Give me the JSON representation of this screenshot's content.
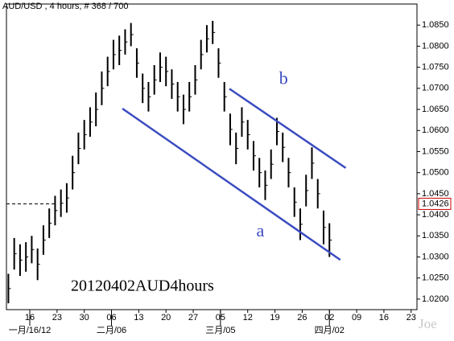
{
  "chart_data": {
    "type": "hilo",
    "title": "AUD/USD , 4 hours, # 368 / 700",
    "watermark": "20120402AUD4hours",
    "signature": "Joe",
    "color": "#000000",
    "x": [
      10.5,
      12,
      13.5,
      15,
      16.5,
      18,
      19.5,
      21,
      22.5,
      24,
      25.5,
      27,
      28.5,
      30,
      31.5,
      33,
      34.5,
      36,
      37.5,
      39,
      40.5,
      42,
      43.5,
      45,
      46.5,
      48,
      49.5,
      51,
      52.5,
      54,
      55.5,
      57,
      58.5,
      60,
      61.5,
      63,
      64.5,
      66,
      67.5,
      69,
      70.5,
      72,
      73.5,
      75,
      76.5,
      78,
      79.5,
      81,
      82.5,
      84,
      85.5,
      87,
      88.5,
      90,
      91.5,
      93
    ],
    "high": [
      1.026,
      1.0345,
      1.033,
      1.0335,
      1.035,
      1.032,
      1.0375,
      1.0415,
      1.0445,
      1.046,
      1.0475,
      1.054,
      1.0595,
      1.0625,
      1.0655,
      1.069,
      1.074,
      1.0775,
      1.0815,
      1.0825,
      1.084,
      1.0855,
      1.0795,
      1.0735,
      1.0715,
      1.0755,
      1.0785,
      1.0775,
      1.0745,
      1.0715,
      1.0685,
      1.0715,
      1.0755,
      1.0815,
      1.085,
      1.086,
      1.0795,
      1.0715,
      1.064,
      1.0595,
      1.0655,
      1.0625,
      1.0575,
      1.0535,
      1.0505,
      1.0555,
      1.063,
      1.0595,
      1.0535,
      1.0465,
      1.0415,
      1.0495,
      1.056,
      1.0485,
      1.041,
      1.038
    ],
    "low": [
      1.019,
      1.027,
      1.0255,
      1.0265,
      1.0285,
      1.0245,
      1.0305,
      1.0345,
      1.0375,
      1.0395,
      1.0405,
      1.046,
      1.052,
      1.0555,
      1.0585,
      1.061,
      1.066,
      1.0705,
      1.0745,
      1.0755,
      1.078,
      1.08,
      1.0725,
      1.0665,
      1.0645,
      1.0685,
      1.0715,
      1.0705,
      1.0675,
      1.0645,
      1.0615,
      1.0645,
      1.0685,
      1.0745,
      1.0785,
      1.0805,
      1.0725,
      1.0645,
      1.0565,
      1.052,
      1.0585,
      1.0555,
      1.0505,
      1.0465,
      1.0435,
      1.0485,
      1.0565,
      1.0525,
      1.0465,
      1.0395,
      1.034,
      1.042,
      1.0485,
      1.0415,
      1.033,
      1.03
    ],
    "xlim": [
      10,
      115.5
    ],
    "ylim": [
      1.0175,
      1.09
    ],
    "yticks": [
      {
        "value": 1.085,
        "label": "1.0850"
      },
      {
        "value": 1.08,
        "label": "1.0800"
      },
      {
        "value": 1.075,
        "label": "1.0750"
      },
      {
        "value": 1.07,
        "label": "1.0700"
      },
      {
        "value": 1.065,
        "label": "1.0650"
      },
      {
        "value": 1.06,
        "label": "1.0600"
      },
      {
        "value": 1.055,
        "label": "1.0550"
      },
      {
        "value": 1.05,
        "label": "1.0500"
      },
      {
        "value": 1.045,
        "label": "1.0450"
      },
      {
        "value": 1.04,
        "label": "1.0400"
      },
      {
        "value": 1.035,
        "label": "1.0350"
      },
      {
        "value": 1.03,
        "label": "1.0300"
      },
      {
        "value": 1.025,
        "label": "1.0250"
      },
      {
        "value": 1.02,
        "label": "1.0200"
      }
    ],
    "xticks": [
      {
        "value": 16,
        "label": "16"
      },
      {
        "value": 23,
        "label": "23"
      },
      {
        "value": 30,
        "label": "30"
      },
      {
        "value": 37,
        "label": "06"
      },
      {
        "value": 44,
        "label": "13"
      },
      {
        "value": 51,
        "label": "20"
      },
      {
        "value": 58,
        "label": "27"
      },
      {
        "value": 65,
        "label": "05"
      },
      {
        "value": 72,
        "label": "12"
      },
      {
        "value": 79,
        "label": "19"
      },
      {
        "value": 86,
        "label": "26"
      },
      {
        "value": 93,
        "label": "02"
      },
      {
        "value": 100,
        "label": "09"
      },
      {
        "value": 107,
        "label": "16"
      },
      {
        "value": 114,
        "label": "23"
      }
    ],
    "month_ticks": [
      {
        "value": 16,
        "label": "一月/16/12"
      },
      {
        "value": 37,
        "label": "二月/06"
      },
      {
        "value": 65,
        "label": "三月/05"
      },
      {
        "value": 93,
        "label": "四月/02"
      }
    ],
    "last_price": 1.0426,
    "last_price_color": "#cc0000",
    "trendlines": [
      {
        "name": "a",
        "color": "#3b4cc0",
        "x": [
          39.8,
          95.8
        ],
        "y": [
          1.0652,
          1.0293
        ]
      },
      {
        "name": "b",
        "color": "#3b4cc0",
        "x": [
          67.3,
          97.2
        ],
        "y": [
          1.0699,
          1.0511
        ]
      }
    ]
  }
}
